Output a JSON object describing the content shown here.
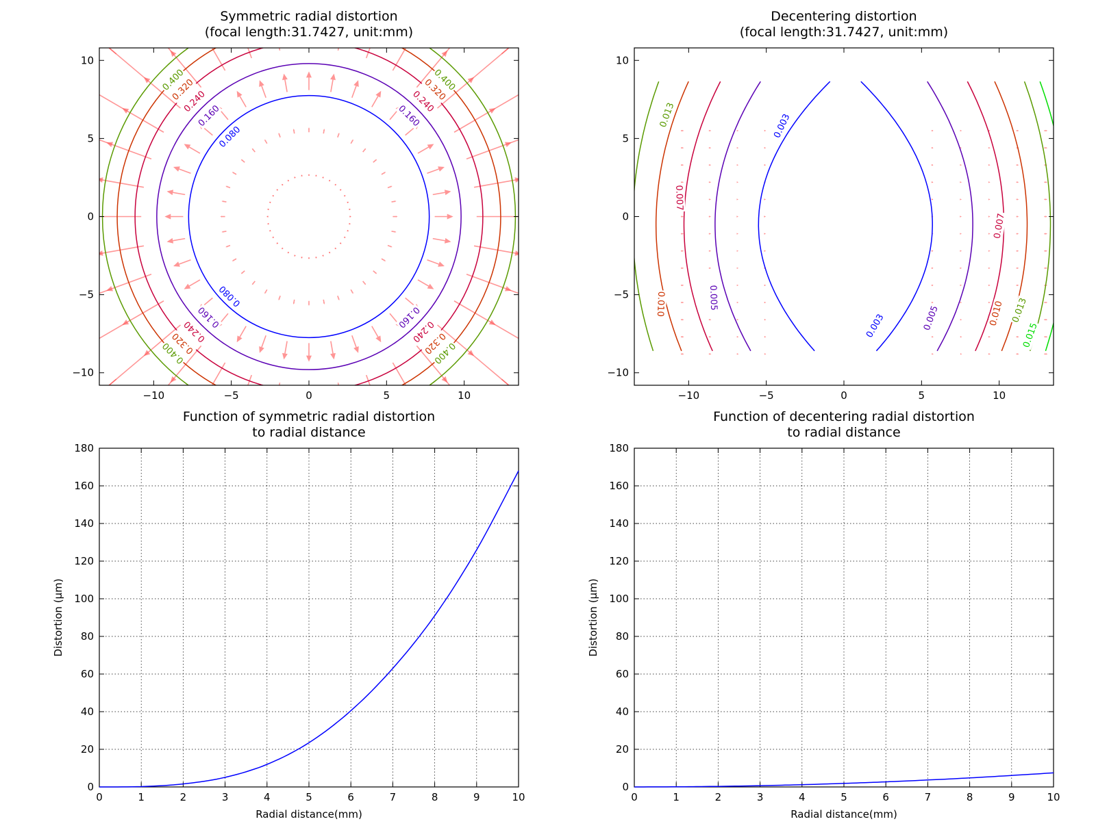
{
  "chart_data": [
    {
      "type": "contour",
      "title": "Symmetric radial distortion\n(focal length:31.7427, unit:mm)",
      "xlim": [
        -13.5,
        13.5
      ],
      "ylim": [
        -10.8,
        10.8
      ],
      "xticks": [
        -10,
        -5,
        0,
        5,
        10
      ],
      "yticks": [
        -10,
        -5,
        0,
        5,
        10
      ],
      "vector_field": true,
      "contours": [
        {
          "level": 0.08,
          "label": "0.080",
          "color": "#0000ff",
          "radius": 7.75
        },
        {
          "level": 0.16,
          "label": "0.160",
          "color": "#5a00b4",
          "radius": 9.8
        },
        {
          "level": 0.24,
          "label": "0.240",
          "color": "#c8003c",
          "radius": 11.2
        },
        {
          "level": 0.32,
          "label": "0.320",
          "color": "#cc3300",
          "radius": 12.35
        },
        {
          "level": 0.4,
          "label": "0.400",
          "color": "#5a9a00",
          "radius": 13.3
        }
      ]
    },
    {
      "type": "contour",
      "title": "Decentering distortion\n(focal length:31.7427, unit:mm)",
      "xlim": [
        -13.5,
        13.5
      ],
      "ylim": [
        -10.8,
        10.8
      ],
      "xticks": [
        -10,
        -5,
        0,
        5,
        10
      ],
      "yticks": [
        -10,
        -5,
        0,
        5,
        10
      ],
      "vector_field": true,
      "contours": [
        {
          "label": "0.003",
          "color": "#0000ff"
        },
        {
          "label": "0.005",
          "color": "#5a00b4"
        },
        {
          "label": "0.007",
          "color": "#c8003c"
        },
        {
          "label": "0.010",
          "color": "#cc3300"
        },
        {
          "label": "0.013",
          "color": "#5a9a00"
        },
        {
          "label": "0.015",
          "color": "#00dd00"
        }
      ]
    },
    {
      "type": "line",
      "title": "Function of symmetric radial distortion\nto radial distance",
      "xlabel": "Radial distance(mm)",
      "ylabel": "Distortion (μm)",
      "xlim": [
        0,
        10
      ],
      "ylim": [
        0,
        180
      ],
      "xticks": [
        0,
        1,
        2,
        3,
        4,
        5,
        6,
        7,
        8,
        9,
        10
      ],
      "yticks": [
        0,
        20,
        40,
        60,
        80,
        100,
        120,
        140,
        160,
        180
      ],
      "grid": true,
      "series": [
        {
          "color": "#0000ff",
          "x": [
            0,
            1,
            2,
            3,
            4,
            5,
            6,
            7,
            8,
            9,
            10
          ],
          "y": [
            0,
            0.2,
            1.6,
            5.1,
            12,
            23.5,
            40.5,
            63,
            91,
            126,
            168
          ]
        }
      ]
    },
    {
      "type": "line",
      "title": "Function of decentering radial distortion\nto radial distance",
      "xlabel": "Radial distance(mm)",
      "ylabel": "Distortion (μm)",
      "xlim": [
        0,
        10
      ],
      "ylim": [
        0,
        180
      ],
      "xticks": [
        0,
        1,
        2,
        3,
        4,
        5,
        6,
        7,
        8,
        9,
        10
      ],
      "yticks": [
        0,
        20,
        40,
        60,
        80,
        100,
        120,
        140,
        160,
        180
      ],
      "grid": true,
      "series": [
        {
          "color": "#0000ff",
          "x": [
            0,
            1,
            2,
            3,
            4,
            5,
            6,
            7,
            8,
            9,
            10
          ],
          "y": [
            0,
            0.08,
            0.3,
            0.68,
            1.2,
            1.9,
            2.7,
            3.7,
            4.8,
            6.1,
            7.5
          ]
        }
      ]
    }
  ]
}
